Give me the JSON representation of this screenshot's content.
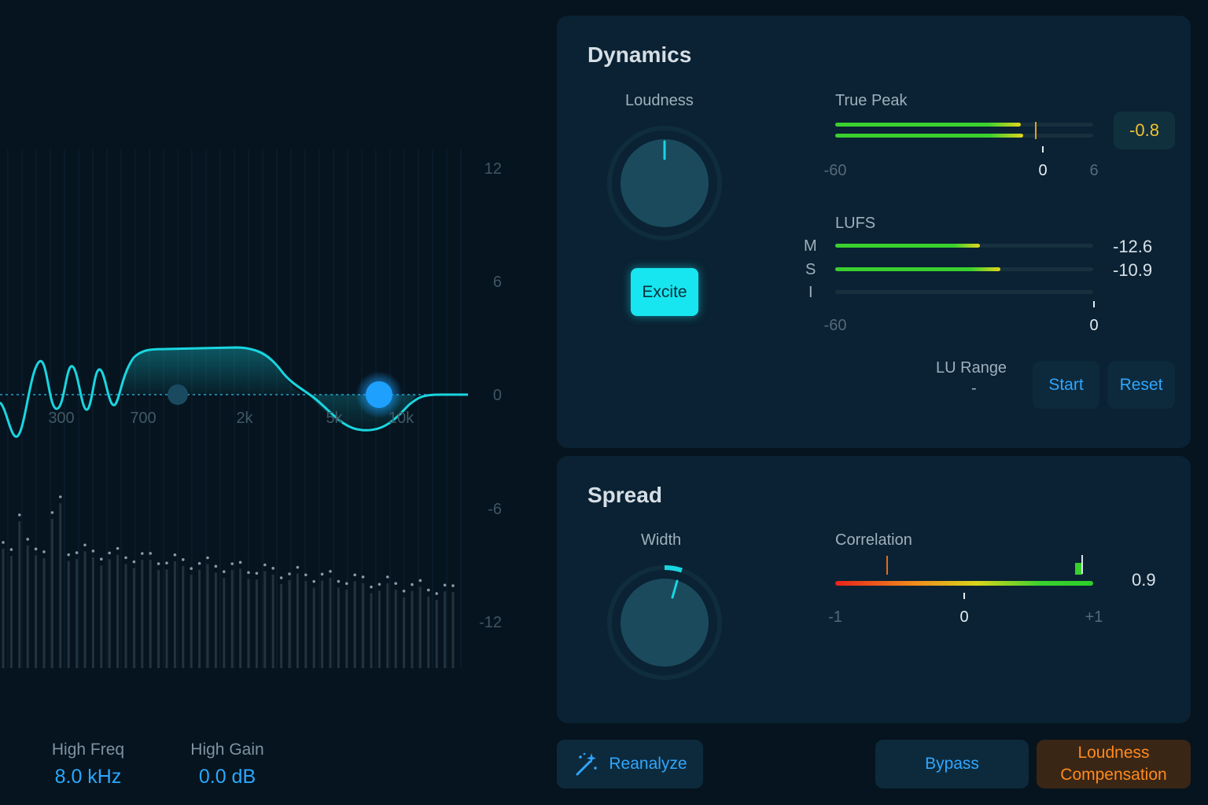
{
  "eq": {
    "db_labels": [
      "12",
      "6",
      "0",
      "-6",
      "-12"
    ],
    "freq_labels": [
      "300",
      "700",
      "2k",
      "5k",
      "10k"
    ],
    "params": [
      {
        "label": "High Freq",
        "value": "8.0 kHz"
      },
      {
        "label": "High Gain",
        "value": "0.0 dB"
      }
    ],
    "curve_color": "#19d6e0",
    "node_color": "#1ea0ff"
  },
  "dynamics": {
    "title": "Dynamics",
    "loudness_label": "Loudness",
    "excite_label": "Excite",
    "true_peak": {
      "label": "True Peak",
      "value": "-0.8",
      "scale": [
        "-60",
        "0",
        "6"
      ],
      "channel_levels": [
        0.72,
        0.73
      ]
    },
    "lufs": {
      "label": "LUFS",
      "rows": [
        {
          "label": "M",
          "value": "-12.6",
          "level": 0.56
        },
        {
          "label": "S",
          "value": "-10.9",
          "level": 0.64
        },
        {
          "label": "I",
          "value": "",
          "level": 0
        }
      ],
      "scale": [
        "-60",
        "0"
      ]
    },
    "lu_range": {
      "label": "LU Range",
      "value": "-"
    },
    "start_label": "Start",
    "reset_label": "Reset"
  },
  "spread": {
    "title": "Spread",
    "width_label": "Width",
    "correlation": {
      "label": "Correlation",
      "value": "0.9",
      "scale": [
        "-1",
        "0",
        "+1"
      ]
    }
  },
  "footer": {
    "reanalyze_label": "Reanalyze",
    "bypass_label": "Bypass",
    "loudness_comp_line1": "Loudness",
    "loudness_comp_line2": "Compensation"
  },
  "colors": {
    "accent": "#2fa6ff",
    "excite": "#17e6f0",
    "meter_green": "#3ad12e",
    "meter_yellow": "#e3d51b",
    "loudness_comp": "#ff8a1f"
  }
}
